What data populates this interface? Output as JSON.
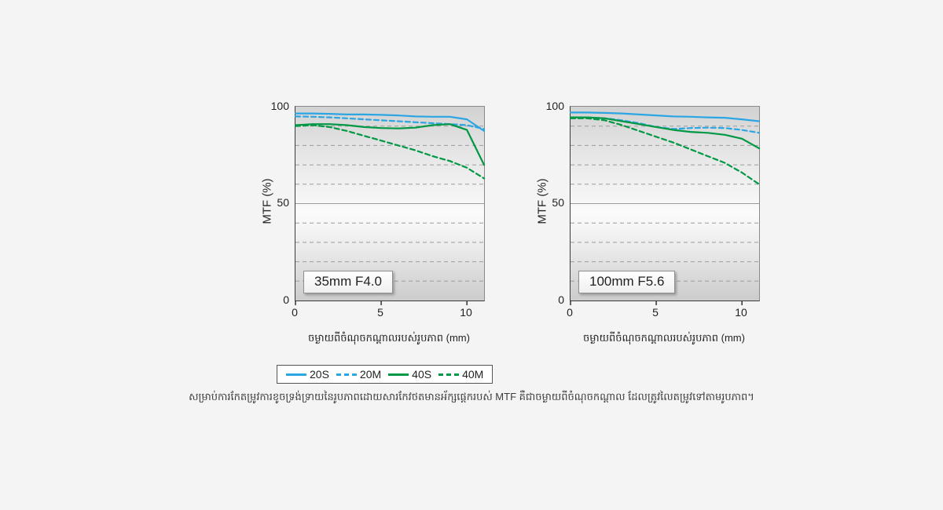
{
  "page": {
    "background": "#f4f4f4",
    "caption": "សម្រាប់ការកែតម្រូវការខូចទ្រង់ទ្រាយនៃរូបភាពដោយសារកែវថតមានអ័ក្សផ្ដេករបស់ MTF គឺជាចម្ងាយពីចំណុចកណ្ដាល ដែលត្រូវលៃតម្រូវទៅតាមរូបភាព។"
  },
  "axis": {
    "y_label": "MTF (%)",
    "y_ticks": [
      "100",
      "50",
      "0"
    ],
    "x_ticks": [
      "0",
      "5",
      "10"
    ],
    "x_axis_label": "ចម្ងាយពីចំណុចកណ្ដាលរបស់រូបភាព (mm)"
  },
  "legend": {
    "items": [
      {
        "label": "20S",
        "color": "#2ba6e3",
        "style": "solid"
      },
      {
        "label": "20M",
        "color": "#2ba6e3",
        "style": "dashed"
      },
      {
        "label": "40S",
        "color": "#009844",
        "style": "solid"
      },
      {
        "label": "40M",
        "color": "#009844",
        "style": "dashed"
      }
    ]
  },
  "charts": [
    {
      "lens_label": "35mm F4.0"
    },
    {
      "lens_label": "100mm F5.6"
    }
  ],
  "chart_data": [
    {
      "type": "line",
      "title": "35mm F4.0",
      "xlabel": "ចម្ងាយពីចំណុចកណ្ដាលរបស់រូបភាព (mm)",
      "ylabel": "MTF (%)",
      "xlim": [
        0,
        11
      ],
      "ylim": [
        0,
        100
      ],
      "grid": "dashed horizontal every 10",
      "legend_position": "below",
      "x": [
        0,
        1,
        2,
        3,
        4,
        5,
        6,
        7,
        8,
        9,
        10,
        11
      ],
      "series": [
        {
          "name": "20S",
          "color": "#2ba6e3",
          "style": "solid",
          "values": [
            96.5,
            96.5,
            96.3,
            96,
            96,
            95.8,
            95.5,
            95,
            94.8,
            94.8,
            93.5,
            87.5
          ]
        },
        {
          "name": "20M",
          "color": "#2ba6e3",
          "style": "dashed",
          "values": [
            95,
            94.8,
            94.5,
            94,
            93.5,
            93,
            92.5,
            92,
            91.5,
            91,
            90.5,
            88.5
          ]
        },
        {
          "name": "40S",
          "color": "#009844",
          "style": "solid",
          "values": [
            90.5,
            91,
            91,
            90.5,
            89.5,
            89,
            88.8,
            89.2,
            90.5,
            91,
            88,
            70
          ]
        },
        {
          "name": "40M",
          "color": "#009844",
          "style": "dashed",
          "values": [
            90,
            90.5,
            89.5,
            87.5,
            85,
            82.5,
            80,
            77.5,
            74.5,
            72,
            68.5,
            63
          ]
        }
      ]
    },
    {
      "type": "line",
      "title": "100mm F5.6",
      "xlabel": "ចម្ងាយពីចំណុចកណ្ដាលរបស់រូបភាព (mm)",
      "ylabel": "MTF (%)",
      "xlim": [
        0,
        11
      ],
      "ylim": [
        0,
        100
      ],
      "grid": "dashed horizontal every 10",
      "legend_position": "below",
      "x": [
        0,
        1,
        2,
        3,
        4,
        5,
        6,
        7,
        8,
        9,
        10,
        11
      ],
      "series": [
        {
          "name": "20S",
          "color": "#2ba6e3",
          "style": "solid",
          "values": [
            97,
            97,
            96.8,
            96.5,
            96,
            95.5,
            95,
            94.8,
            94.5,
            94.3,
            93.5,
            92.5
          ]
        },
        {
          "name": "20M",
          "color": "#2ba6e3",
          "style": "dashed",
          "values": [
            94.5,
            94.5,
            94,
            93,
            91.5,
            89.5,
            88.5,
            89,
            89.2,
            89,
            88,
            86.5
          ]
        },
        {
          "name": "40S",
          "color": "#009844",
          "style": "solid",
          "values": [
            94.5,
            94.5,
            94,
            92.5,
            91,
            89.5,
            88,
            87,
            86.5,
            85.5,
            83.5,
            78.5
          ]
        },
        {
          "name": "40M",
          "color": "#009844",
          "style": "dashed",
          "values": [
            94,
            94,
            93,
            90.5,
            87.5,
            84.5,
            81.5,
            78,
            74.5,
            71,
            66,
            60
          ]
        }
      ]
    }
  ]
}
